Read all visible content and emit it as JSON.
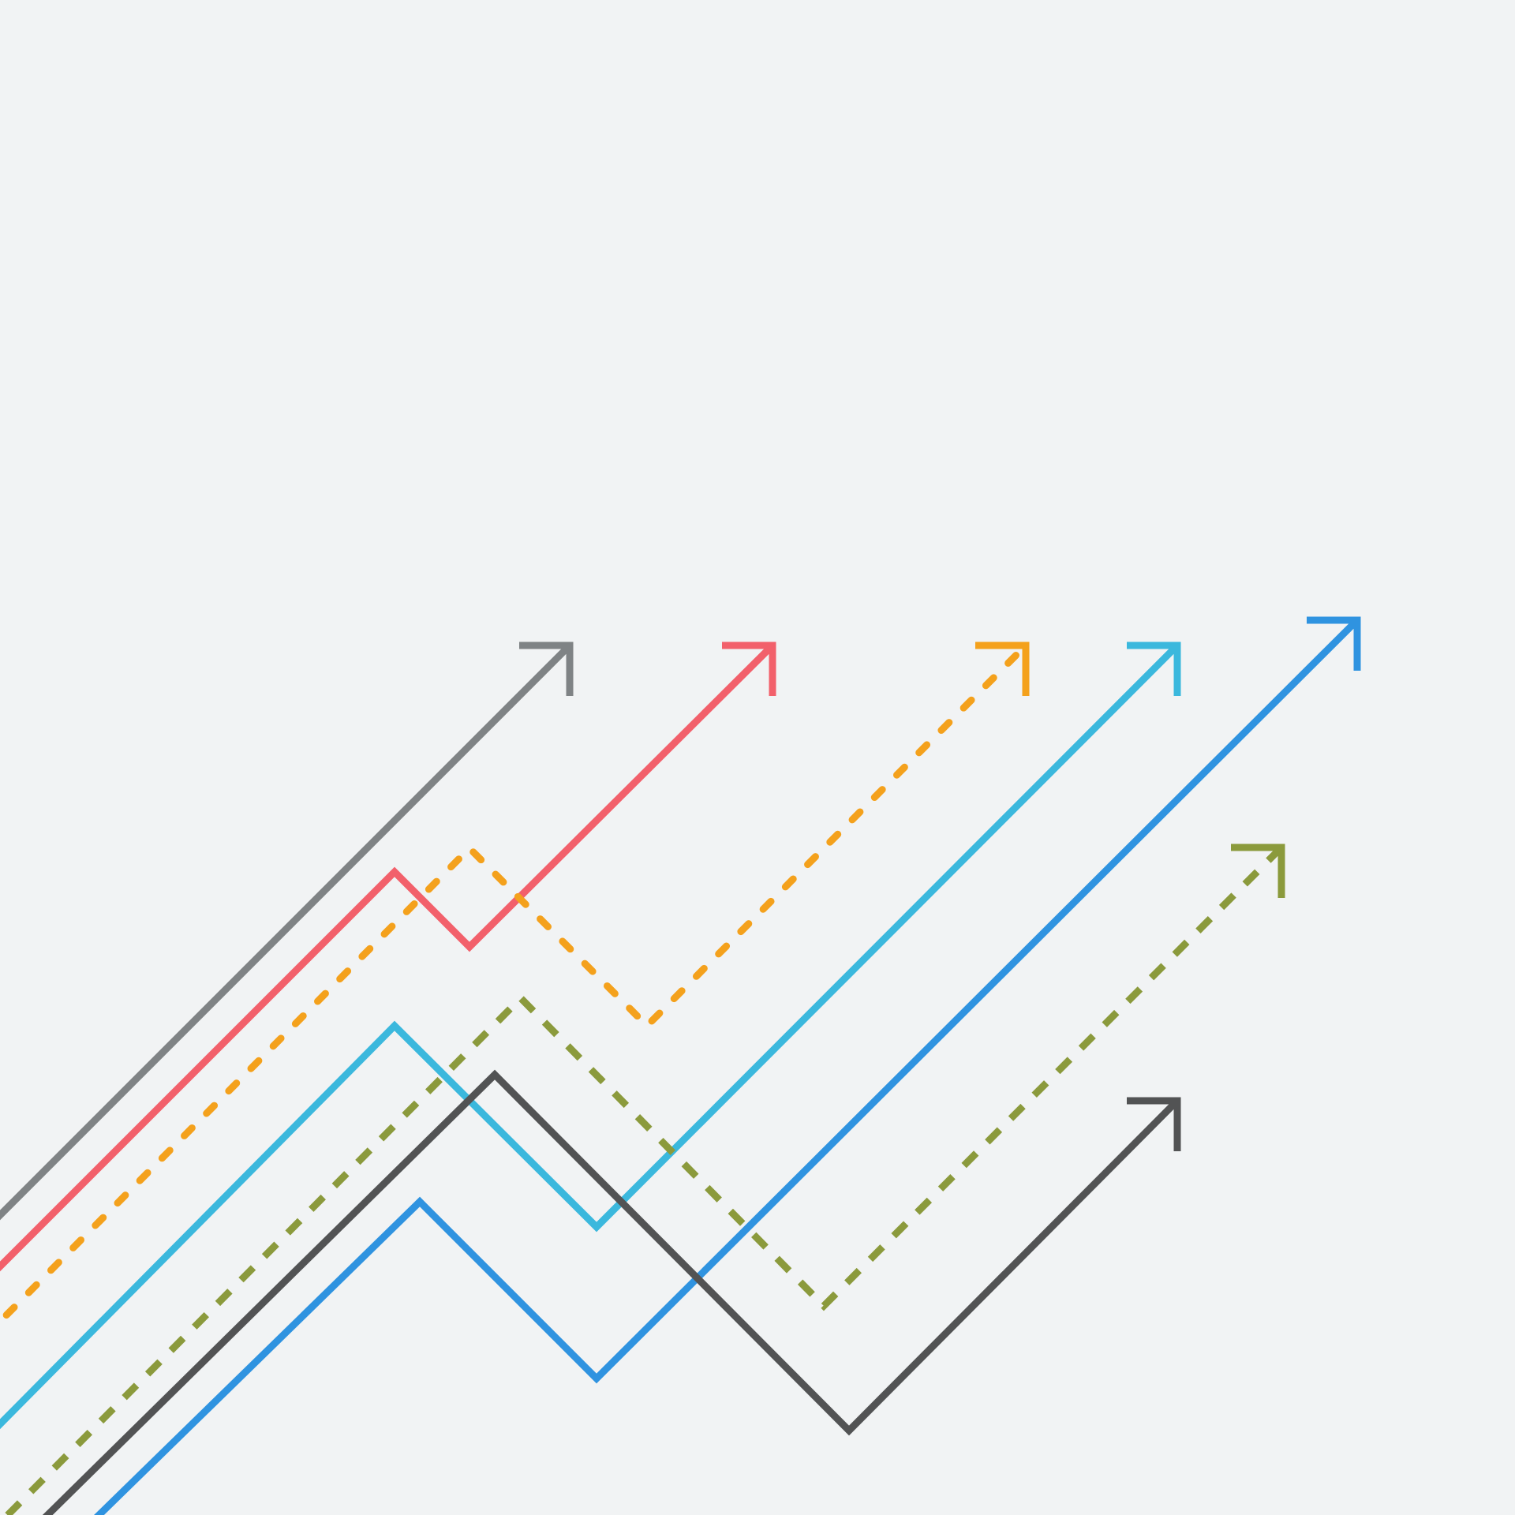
{
  "background_color": "#f1f3f4",
  "illustration": {
    "arrows": [
      {
        "name": "gray-arrow",
        "icon": "arrow-up-right-icon",
        "color": "#7f8385",
        "style": "solid"
      },
      {
        "name": "red-arrow",
        "icon": "arrow-up-right-icon",
        "color": "#f2606b",
        "style": "solid"
      },
      {
        "name": "orange-dotted-arrow",
        "icon": "arrow-up-right-icon",
        "color": "#f4a11c",
        "style": "dotted"
      },
      {
        "name": "cyan-arrow",
        "icon": "arrow-up-right-icon",
        "color": "#3bb8dd",
        "style": "solid"
      },
      {
        "name": "blue-arrow",
        "icon": "arrow-up-right-icon",
        "color": "#2f93e0",
        "style": "solid"
      },
      {
        "name": "olive-dashed-arrow",
        "icon": "arrow-up-right-icon",
        "color": "#8b9a3c",
        "style": "dashed"
      },
      {
        "name": "dark-gray-arrow",
        "icon": "arrow-up-right-icon",
        "color": "#525354",
        "style": "solid"
      }
    ]
  }
}
